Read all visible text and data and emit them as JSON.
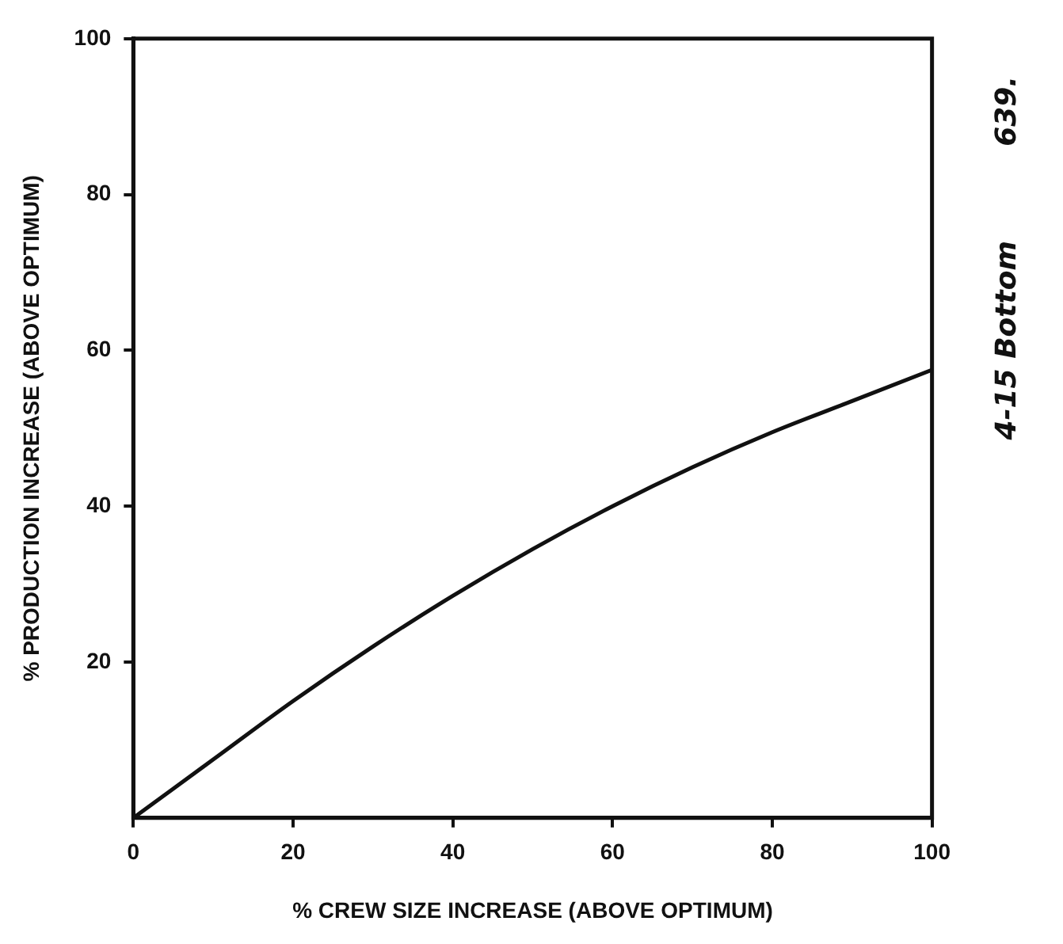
{
  "chart_data": {
    "type": "line",
    "xlabel": "% CREW SIZE INCREASE (ABOVE OPTIMUM)",
    "ylabel": "% PRODUCTION INCREASE (ABOVE OPTIMUM)",
    "x": [
      0,
      10,
      20,
      30,
      40,
      50,
      60,
      70,
      80,
      90,
      100
    ],
    "series": [
      {
        "color": "#111111",
        "values": [
          0,
          7.5,
          15,
          22,
          28.5,
          34.5,
          40,
          45,
          49.5,
          53.5,
          57.5
        ]
      }
    ],
    "xlim": [
      0,
      100
    ],
    "ylim": [
      0,
      100
    ],
    "xticks": [
      0,
      20,
      40,
      60,
      80,
      100
    ],
    "yticks": [
      20,
      40,
      60,
      80,
      100
    ],
    "grid": false,
    "legend": false,
    "marker": "none",
    "line_style": "solid",
    "annotations": [
      "639.",
      "4-15 Bottom"
    ]
  }
}
